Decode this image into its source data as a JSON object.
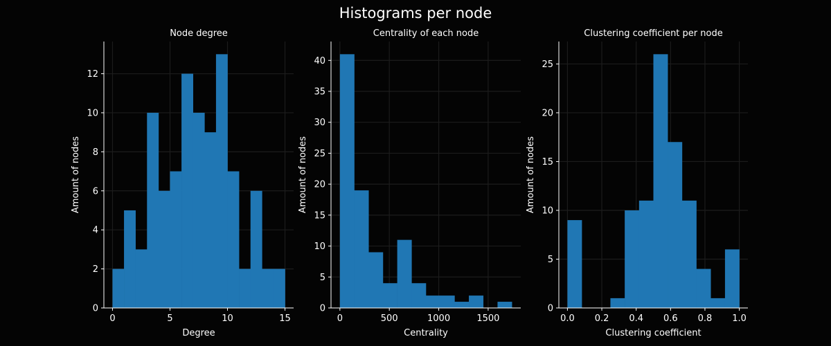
{
  "title": "Histograms per node",
  "colors": {
    "background": "#040404",
    "bar": "#2077b4",
    "text": "#ffffff",
    "grid": "#1c1c1c"
  },
  "chart_data": [
    {
      "type": "bar",
      "title": "Node degree",
      "xlabel": "Degree",
      "ylabel": "Amount of nodes",
      "xlim": [
        -0.75,
        15.75
      ],
      "ylim": [
        0,
        13.65
      ],
      "xticks": [
        0,
        5,
        10,
        15
      ],
      "yticks": [
        0,
        2,
        4,
        6,
        8,
        10,
        12
      ],
      "bin_edges": [
        0,
        1,
        2,
        3,
        4,
        5,
        6,
        7,
        8,
        9,
        10,
        11,
        12,
        13,
        14,
        15
      ],
      "values": [
        2,
        5,
        3,
        10,
        6,
        7,
        12,
        10,
        9,
        13,
        7,
        2,
        6,
        2,
        2
      ],
      "grid": true
    },
    {
      "type": "bar",
      "title": "Centrality of each node",
      "xlabel": "Centrality",
      "ylabel": "Amount of nodes",
      "xlim": [
        -90,
        1830
      ],
      "ylim": [
        0,
        43.05
      ],
      "xticks": [
        0,
        500,
        1000,
        1500
      ],
      "yticks": [
        0,
        5,
        10,
        15,
        20,
        25,
        30,
        35,
        40
      ],
      "bin_edges": [
        0,
        145,
        290,
        435,
        580,
        725,
        870,
        1015,
        1160,
        1305,
        1450,
        1595,
        1740
      ],
      "values": [
        41,
        19,
        9,
        4,
        11,
        4,
        2,
        2,
        1,
        2,
        0,
        1
      ],
      "grid": true
    },
    {
      "type": "bar",
      "title": "Clustering coefficient per node",
      "xlabel": "Clustering coefficient",
      "ylabel": "Amount of nodes",
      "xlim": [
        -0.05,
        1.05
      ],
      "ylim": [
        0,
        27.3
      ],
      "xticks": [
        0.0,
        0.2,
        0.4,
        0.6,
        0.8,
        1.0
      ],
      "yticks": [
        0,
        5,
        10,
        15,
        20,
        25
      ],
      "bin_edges": [
        0,
        0.0833,
        0.1667,
        0.25,
        0.3333,
        0.4167,
        0.5,
        0.5833,
        0.6667,
        0.75,
        0.8333,
        0.9167,
        1.0
      ],
      "values": [
        9,
        0,
        0,
        1,
        10,
        11,
        26,
        17,
        11,
        4,
        1,
        6
      ],
      "grid": true
    }
  ]
}
